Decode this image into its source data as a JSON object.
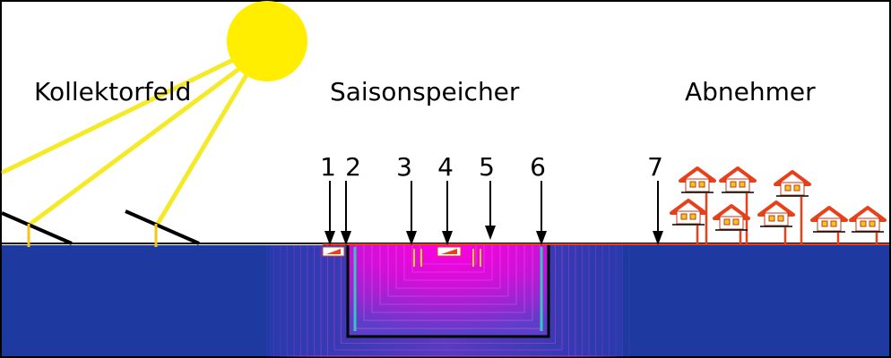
{
  "titles": {
    "collector_field": "Kollektorfeld",
    "seasonal_storage": "Saisonspeicher",
    "consumers": "Abnehmer"
  },
  "markers": [
    "1",
    "2",
    "3",
    "4",
    "5",
    "6",
    "7"
  ],
  "colors": {
    "sky": "#ffffff",
    "ground": "#1e3aa0",
    "sun": "#ffee00",
    "sun_rays": "#f5ea2a",
    "storage_hot": "#ff00dd",
    "storage_cold": "#5a3fc8",
    "pipe": "#e8401a",
    "house_roof": "#e8401a",
    "wall_liner": "#3fbfbf",
    "border": "#000000"
  },
  "icons": [
    "sun",
    "solar-collector",
    "house",
    "arrow-down"
  ]
}
